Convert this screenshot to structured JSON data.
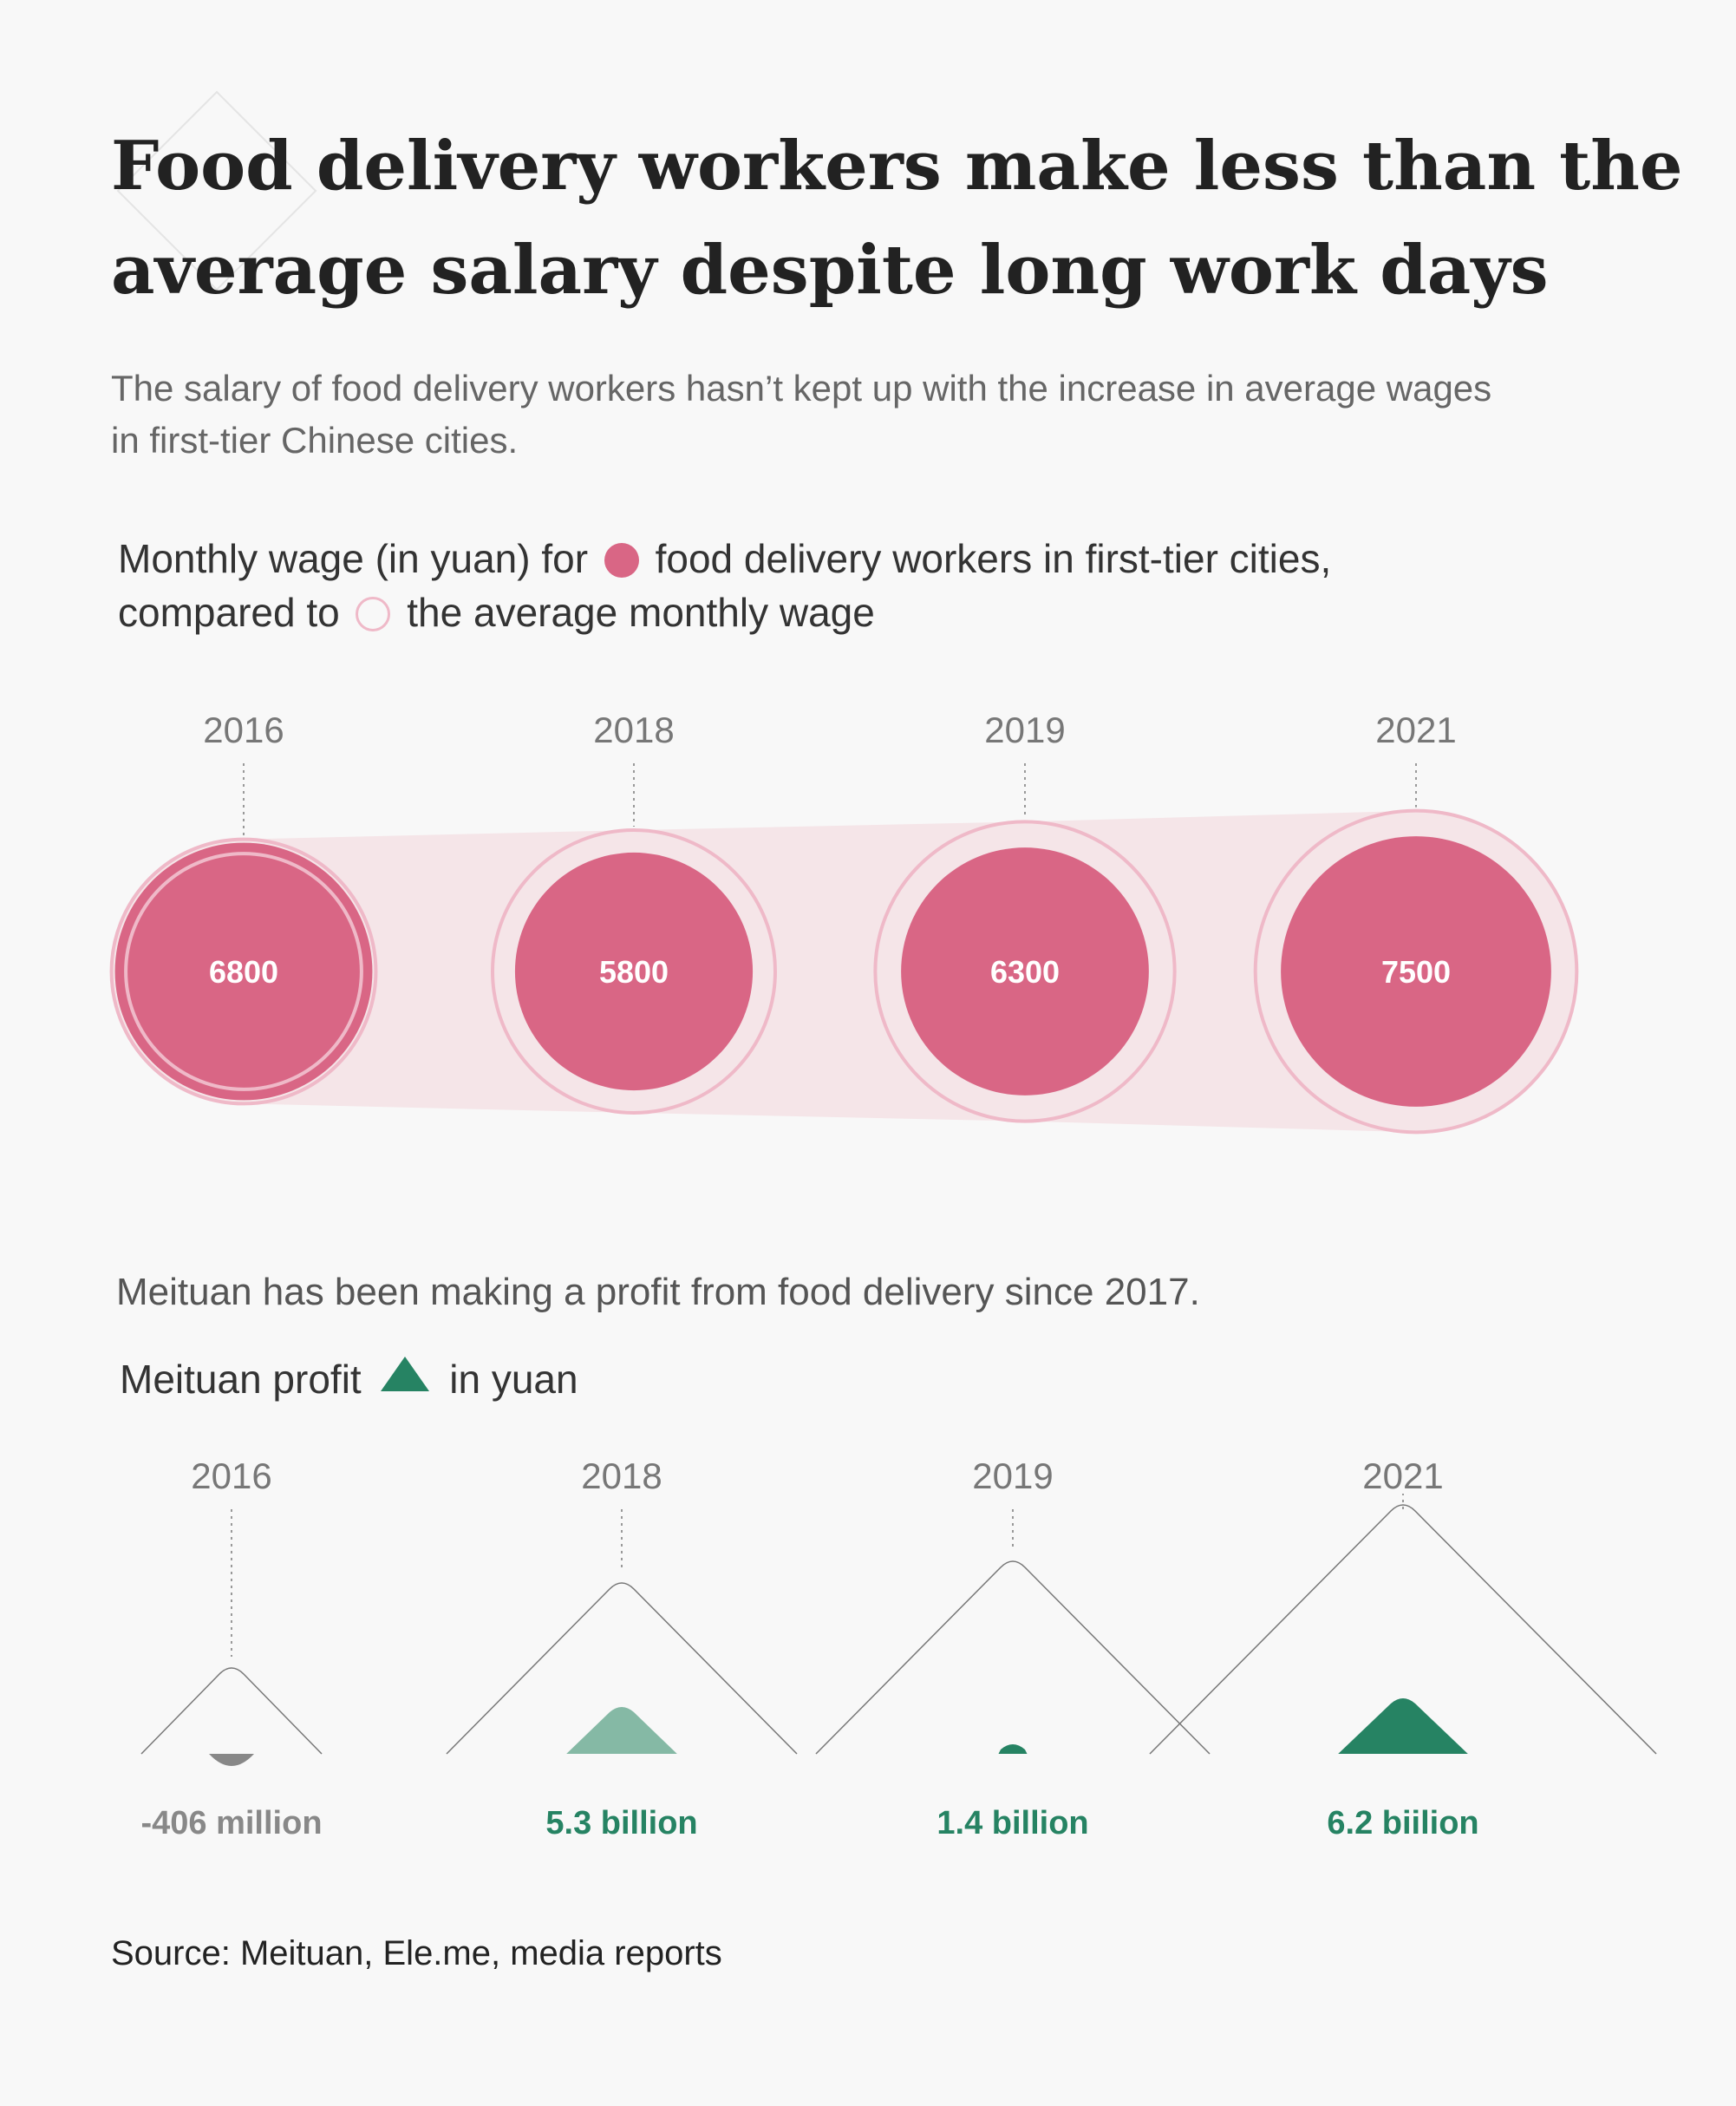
{
  "title": "Food delivery workers make less than the average salary despite long work days",
  "subtitle": "The salary of food delivery workers hasn’t kept up with the increase in average wages in first-tier Chinese cities.",
  "legend": {
    "part1": "Monthly wage (in yuan) for",
    "part2": "food delivery workers in first-tier cities,",
    "part3": "compared to",
    "part4": "the average monthly wage"
  },
  "section2_text": "Meituan has been making a profit from food delivery since 2017.",
  "profit_legend": {
    "part1": "Meituan profit",
    "part2": "in yuan"
  },
  "source": "Source: Meituan, Ele.me, media reports",
  "colors": {
    "wage_fill": "#d96685",
    "avg_outline": "#efb9c8",
    "band": "#f5e5e8",
    "profit_dark": "#268363",
    "profit_light": "#85b9a5",
    "loss": "#888888"
  },
  "chart_data": [
    {
      "type": "bubble",
      "title": "Monthly wage (in yuan) for food delivery workers in first-tier cities, compared to the average monthly wage",
      "categories": [
        "2016",
        "2018",
        "2019",
        "2021"
      ],
      "series": [
        {
          "name": "food delivery workers in first-tier cities",
          "values": [
            6800,
            5800,
            6300,
            7500
          ],
          "labels": [
            "6800",
            "5800",
            "6300",
            "7500"
          ]
        },
        {
          "name": "the average monthly wage",
          "values": [
            5700,
            8200,
            9200,
            10600
          ]
        }
      ]
    },
    {
      "type": "area",
      "title": "Meituan profit in yuan",
      "categories": [
        "2016",
        "2018",
        "2019",
        "2021"
      ],
      "values": [
        -0.406,
        5.3,
        1.4,
        6.2
      ],
      "unit": "billion yuan",
      "labels": [
        "-406 million",
        "5.3 billion",
        "1.4 billion",
        "6.2 biilion"
      ]
    }
  ]
}
